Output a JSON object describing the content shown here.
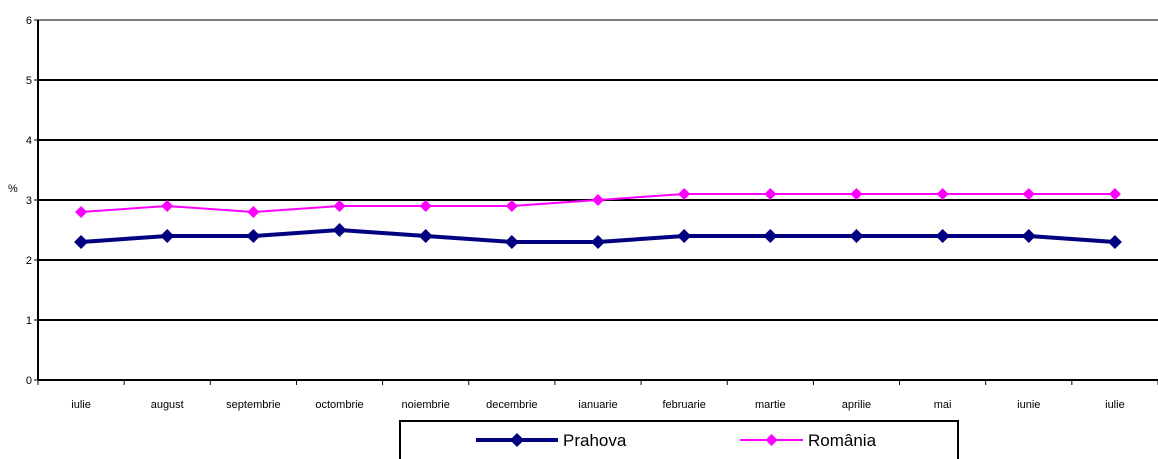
{
  "chart_data": {
    "type": "line",
    "title": "",
    "xlabel": "",
    "ylabel": "%",
    "ylim": [
      0,
      6
    ],
    "yticks": [
      0,
      1,
      2,
      3,
      4,
      5,
      6
    ],
    "grid": true,
    "legend_position": "bottom",
    "categories": [
      "iulie",
      "august",
      "septembrie",
      "octombrie",
      "noiembrie",
      "decembrie",
      "ianuarie",
      "februarie",
      "martie",
      "aprilie",
      "mai",
      "iunie",
      "iulie"
    ],
    "series": [
      {
        "name": "Prahova",
        "color": "#000080",
        "marker": "diamond",
        "values": [
          2.3,
          2.4,
          2.4,
          2.5,
          2.4,
          2.3,
          2.3,
          2.4,
          2.4,
          2.4,
          2.4,
          2.4,
          2.3
        ]
      },
      {
        "name": "România",
        "color": "#ff00ff",
        "marker": "diamond",
        "values": [
          2.8,
          2.9,
          2.8,
          2.9,
          2.9,
          2.9,
          3.0,
          3.1,
          3.1,
          3.1,
          3.1,
          3.1,
          3.1
        ]
      }
    ]
  }
}
